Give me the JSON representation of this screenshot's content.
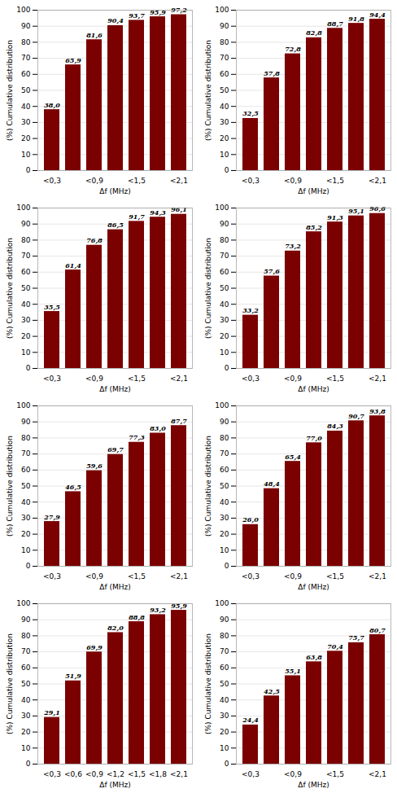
{
  "chart_data": [
    {
      "type": "bar",
      "categories": [
        "<0,3",
        null,
        "<0,9",
        null,
        "<1,5",
        null,
        "<2,1"
      ],
      "values": [
        38.0,
        65.9,
        81.6,
        90.4,
        93.7,
        95.9,
        97.2
      ],
      "value_labels": [
        "38,0",
        "65,9",
        "81,6",
        "90,4",
        "93,7",
        "95,9",
        "97,2"
      ],
      "color": "#7B0000",
      "xlabel": "Δf (MHz)",
      "ylabel": "(%) Cumulative distribution",
      "ylim": [
        0,
        100
      ],
      "yticks": [
        0,
        10,
        20,
        30,
        40,
        50,
        60,
        70,
        80,
        90,
        100
      ],
      "grid": true,
      "data_labels": true
    },
    {
      "type": "bar",
      "categories": [
        "<0,3",
        null,
        "<0,9",
        null,
        "<1,5",
        null,
        "<2,1"
      ],
      "values": [
        32.5,
        57.8,
        72.8,
        82.8,
        88.7,
        91.8,
        94.4
      ],
      "value_labels": [
        "32,5",
        "57,8",
        "72,8",
        "82,8",
        "88,7",
        "91,8",
        "94,4"
      ],
      "color": "#7B0000",
      "xlabel": "Δf (MHz)",
      "ylabel": "(%) Cumulative distribution",
      "ylim": [
        0,
        100
      ],
      "yticks": [
        0,
        10,
        20,
        30,
        40,
        50,
        60,
        70,
        80,
        90,
        100
      ],
      "grid": true,
      "data_labels": true
    },
    {
      "type": "bar",
      "categories": [
        "<0,3",
        null,
        "<0,9",
        null,
        "<1,5",
        null,
        "<2,1"
      ],
      "values": [
        35.5,
        61.4,
        76.8,
        86.5,
        91.7,
        94.3,
        96.1
      ],
      "value_labels": [
        "35,5",
        "61,4",
        "76,8",
        "86,5",
        "91,7",
        "94,3",
        "96,1"
      ],
      "color": "#7B0000",
      "xlabel": "Δf (MHz)",
      "ylabel": "(%) Cumulative distribution",
      "ylim": [
        0,
        100
      ],
      "yticks": [
        0,
        10,
        20,
        30,
        40,
        50,
        60,
        70,
        80,
        90,
        100
      ],
      "grid": true,
      "data_labels": true
    },
    {
      "type": "bar",
      "categories": [
        "<0,3",
        null,
        "<0,9",
        null,
        "<1,5",
        null,
        "<2,1"
      ],
      "values": [
        33.2,
        57.6,
        73.2,
        85.2,
        91.3,
        95.1,
        96.6
      ],
      "value_labels": [
        "33,2",
        "57,6",
        "73,2",
        "85,2",
        "91,3",
        "95,1",
        "96,6"
      ],
      "color": "#7B0000",
      "xlabel": "Δf (MHz)",
      "ylabel": "(%) Cumulative distribution",
      "ylim": [
        0,
        100
      ],
      "yticks": [
        0,
        10,
        20,
        30,
        40,
        50,
        60,
        70,
        80,
        90,
        100
      ],
      "grid": true,
      "data_labels": true
    },
    {
      "type": "bar",
      "categories": [
        "<0,3",
        null,
        "<0,9",
        null,
        "<1,5",
        null,
        "<2,1"
      ],
      "values": [
        27.9,
        46.5,
        59.6,
        69.7,
        77.3,
        83.0,
        87.7
      ],
      "value_labels": [
        "27,9",
        "46,5",
        "59,6",
        "69,7",
        "77,3",
        "83,0",
        "87,7"
      ],
      "color": "#7B0000",
      "xlabel": "Δf (MHz)",
      "ylabel": "(%) Cumulative distribution",
      "ylim": [
        0,
        100
      ],
      "yticks": [
        0,
        10,
        20,
        30,
        40,
        50,
        60,
        70,
        80,
        90,
        100
      ],
      "grid": true,
      "data_labels": true
    },
    {
      "type": "bar",
      "categories": [
        "<0,3",
        null,
        "<0,9",
        null,
        "<1,5",
        null,
        "<2,1"
      ],
      "values": [
        26.0,
        48.4,
        65.4,
        77.0,
        84.3,
        90.7,
        93.8
      ],
      "value_labels": [
        "26,0",
        "48,4",
        "65,4",
        "77,0",
        "84,3",
        "90,7",
        "93,8"
      ],
      "color": "#7B0000",
      "xlabel": "Δf (MHz)",
      "ylabel": "(%) Cumulative distribution",
      "ylim": [
        0,
        100
      ],
      "yticks": [
        0,
        10,
        20,
        30,
        40,
        50,
        60,
        70,
        80,
        90,
        100
      ],
      "grid": true,
      "data_labels": true
    },
    {
      "type": "bar",
      "categories": [
        "<0,3",
        "<0,6",
        "<0,9",
        "<1,2",
        "<1,5",
        "<1,8",
        "<2,1"
      ],
      "values": [
        29.1,
        51.9,
        69.9,
        82.0,
        88.8,
        93.2,
        95.9
      ],
      "value_labels": [
        "29,1",
        "51,9",
        "69,9",
        "82,0",
        "88,8",
        "93,2",
        "95,9"
      ],
      "color": "#7B0000",
      "xlabel": "Δf (MHz)",
      "ylabel": "(%) Cumulative distribution",
      "ylim": [
        0,
        100
      ],
      "yticks": [
        0,
        10,
        20,
        30,
        40,
        50,
        60,
        70,
        80,
        90,
        100
      ],
      "grid": true,
      "data_labels": true
    },
    {
      "type": "bar",
      "categories": [
        "<0,3",
        null,
        "<0,9",
        null,
        "<1,5",
        null,
        "<2,1"
      ],
      "values": [
        24.4,
        42.5,
        55.1,
        63.8,
        70.4,
        75.7,
        80.7
      ],
      "value_labels": [
        "24,4",
        "42,5",
        "55,1",
        "63,8",
        "70,4",
        "75,7",
        "80,7"
      ],
      "color": "#7B0000",
      "xlabel": "Δf (MHz)",
      "ylabel": "(%) Cumulative distribution",
      "ylim": [
        0,
        100
      ],
      "yticks": [
        0,
        10,
        20,
        30,
        40,
        50,
        60,
        70,
        80,
        90,
        100
      ],
      "grid": true,
      "data_labels": true
    }
  ]
}
